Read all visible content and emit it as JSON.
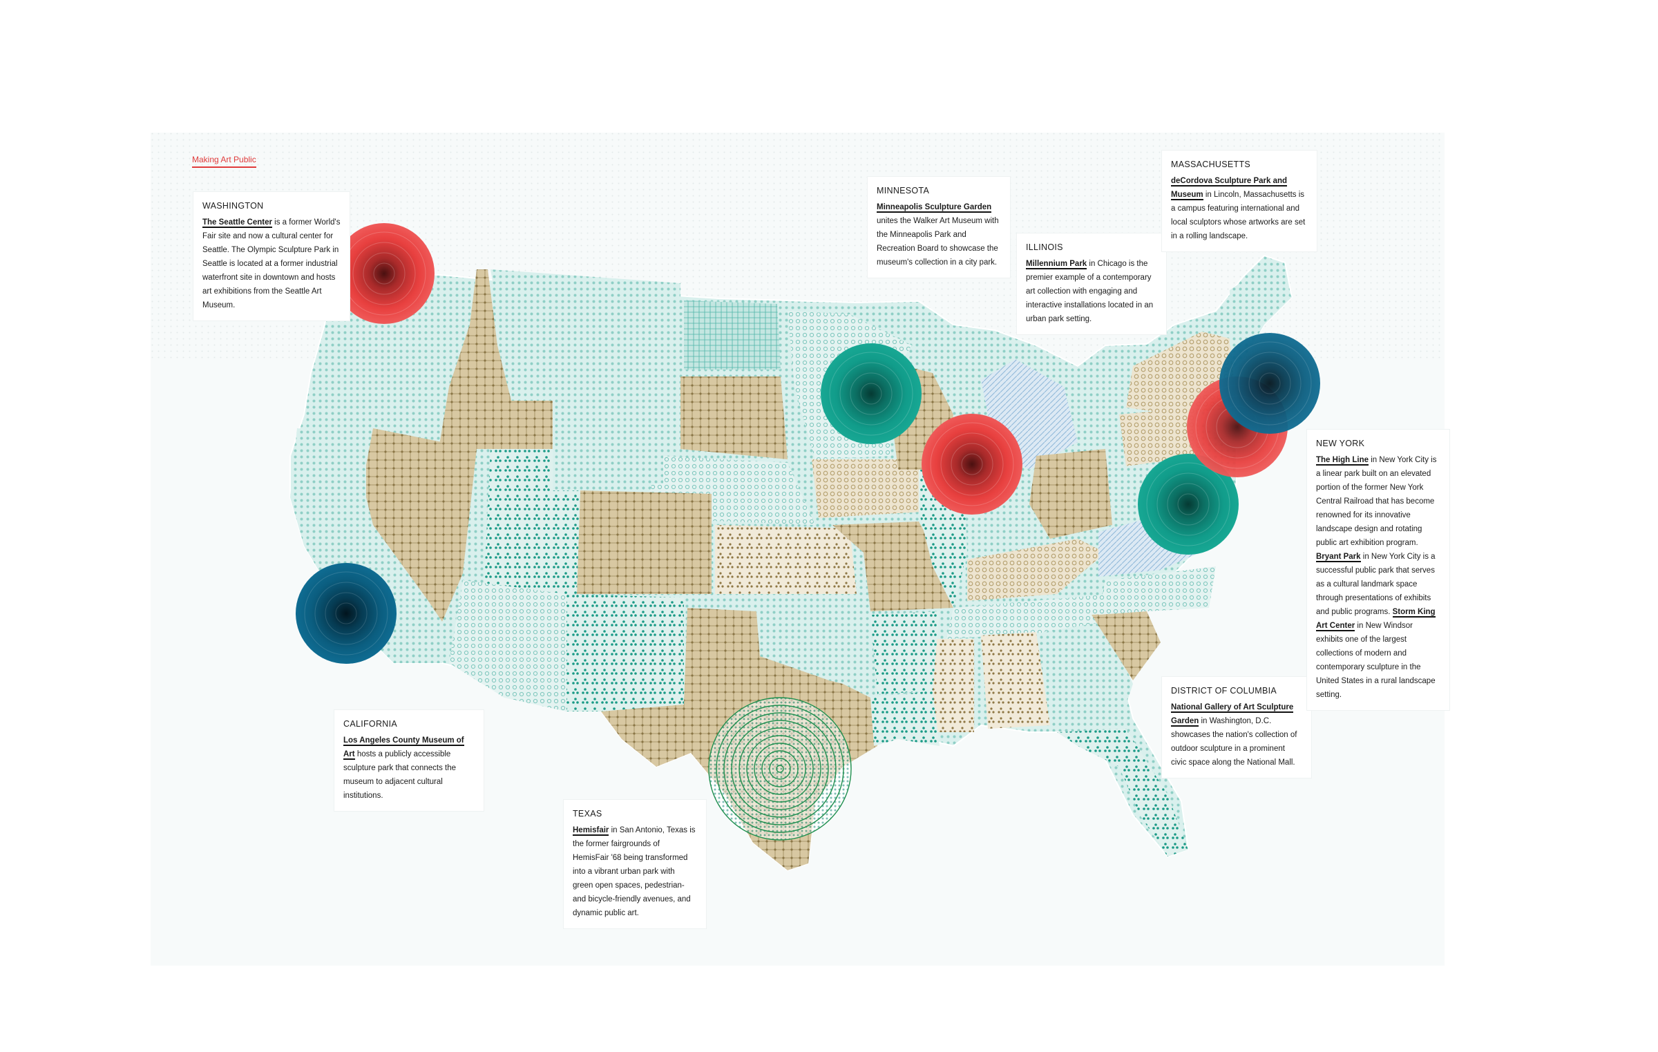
{
  "title": "Making Art Public",
  "colors": {
    "red": "#e8403f",
    "teal": "#119c8a",
    "blue": "#0b5e80",
    "green": "#2e8a4a",
    "tan": "#c8b489",
    "light_teal": "#bfe4df",
    "title_red": "#e03a3a"
  },
  "legend": [
    {
      "color": "red",
      "meaning": ""
    },
    {
      "color": "teal",
      "meaning": ""
    },
    {
      "color": "blue",
      "meaning": ""
    }
  ],
  "markers": [
    {
      "name": "seattle-marker",
      "state": "WASHINGTON",
      "color": "red",
      "style": "filled"
    },
    {
      "name": "los-angeles-marker",
      "state": "CALIFORNIA",
      "color": "blue",
      "style": "filled"
    },
    {
      "name": "minneapolis-marker",
      "state": "MINNESOTA",
      "color": "teal",
      "style": "filled"
    },
    {
      "name": "chicago-marker",
      "state": "ILLINOIS",
      "color": "red",
      "style": "filled"
    },
    {
      "name": "san-antonio-marker",
      "state": "TEXAS",
      "color": "green",
      "style": "rings"
    },
    {
      "name": "washington-dc-marker",
      "state": "DISTRICT OF COLUMBIA",
      "color": "teal",
      "style": "filled"
    },
    {
      "name": "new-york-marker-blue",
      "state": "NEW YORK",
      "color": "blue",
      "style": "filled"
    },
    {
      "name": "new-york-marker-red",
      "state": "NEW YORK",
      "color": "red",
      "style": "filled"
    }
  ],
  "cards": {
    "washington": {
      "state": "WASHINGTON",
      "venue": "The Seattle Center",
      "text": " is a former World's Fair site and now a cultural center for Seattle. The Olympic Sculpture Park in Seattle is located at a former industrial waterfront site in downtown and hosts art exhibitions from the Seattle Art Museum."
    },
    "minnesota": {
      "state": "MINNESOTA",
      "venue": "Minneapolis Sculpture Garden",
      "text": " unites the Walker Art Museum with the Minneapolis Park and Recreation Board to showcase the museum's collection in a city park."
    },
    "illinois": {
      "state": "ILLINOIS",
      "venue": "Millennium Park",
      "text": " in Chicago is the premier example of a contemporary art collection with engaging and interactive installations located in an urban park setting."
    },
    "massachusetts": {
      "state": "MASSACHUSETTS",
      "venue": "deCordova Sculpture Park and Museum",
      "text": " in Lincoln, Massachusetts is a campus featuring international and local sculptors whose artworks are set in a rolling landscape."
    },
    "california": {
      "state": "CALIFORNIA",
      "venue": "Los Angeles County Museum of Art",
      "text": " hosts a publicly accessible sculpture park that connects the museum to adjacent cultural institutions."
    },
    "texas": {
      "state": "TEXAS",
      "venue": "Hemisfair",
      "text": " in San Antonio, Texas is the former fairgrounds of HemisFair '68 being transformed into a vibrant urban park with green open spaces, pedestrian- and bicycle-friendly avenues, and dynamic public art."
    },
    "dc": {
      "state": "DISTRICT OF COLUMBIA",
      "venue": "National Gallery of Art Sculpture Garden",
      "text": " in Washington, D.C. showcases the nation's collection of outdoor sculpture in a prominent civic space along the National Mall."
    },
    "newyork": {
      "state": "NEW YORK",
      "venue": "The High Line",
      "text": " in New York City is a linear park built on an elevated portion of the former New York Central Railroad that has become renowned for its innovative landscape design and rotating public art exhibition program. ",
      "venue2": "Bryant Park",
      "text2": " in New York City is a successful public park that serves as a cultural landmark space through presentations of exhibits and public programs. ",
      "venue3": "Storm King Art Center",
      "text3": " in New Windsor exhibits one of the largest collections of modern and contemporary sculpture in the United States in a rural landscape setting."
    }
  }
}
